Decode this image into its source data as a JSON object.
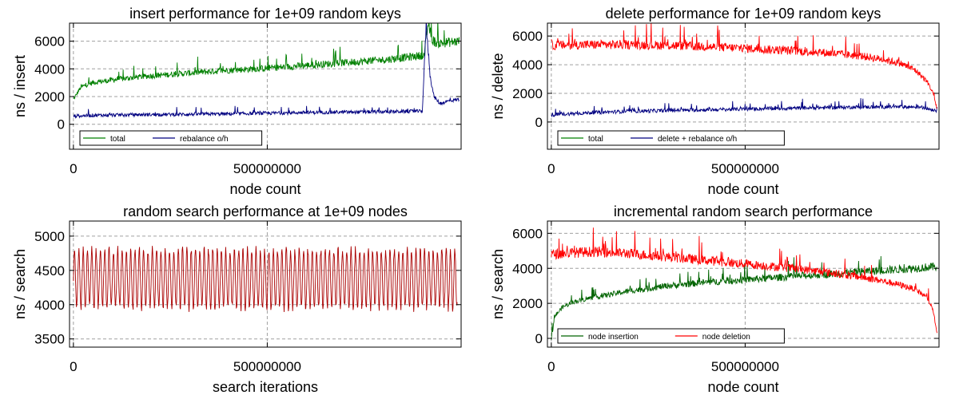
{
  "chart_data": [
    {
      "type": "line",
      "title": "insert performance for 1e+09 random keys",
      "xlabel": "node count",
      "ylabel": "ns / insert",
      "xlim": [
        -10000000,
        1000000000
      ],
      "ylim": [
        -1800,
        7300
      ],
      "xticks": [
        0,
        500000000
      ],
      "xtick_labels": [
        "0",
        "500000000"
      ],
      "yticks": [
        0,
        2000,
        4000,
        6000
      ],
      "ytick_labels": [
        "0",
        "2000",
        "4000",
        "6000"
      ],
      "grid": true,
      "legend": "bottom-left",
      "series": [
        {
          "name": "total",
          "color": "#008000",
          "x": [
            0,
            20000000,
            50000000,
            100000000,
            200000000,
            300000000,
            400000000,
            500000000,
            600000000,
            700000000,
            800000000,
            880000000,
            905000000,
            915000000,
            925000000,
            940000000,
            960000000,
            980000000,
            995000000
          ],
          "y": [
            1800,
            2700,
            3000,
            3200,
            3500,
            3700,
            3900,
            4050,
            4250,
            4450,
            4650,
            4900,
            5000,
            7300,
            6100,
            5800,
            5900,
            5950,
            6000
          ]
        },
        {
          "name": "rebalance o/h",
          "color": "#000080",
          "x": [
            0,
            50000000,
            200000000,
            400000000,
            600000000,
            800000000,
            900000000,
            910000000,
            920000000,
            930000000,
            945000000,
            970000000,
            995000000
          ],
          "y": [
            600,
            650,
            700,
            750,
            850,
            900,
            950,
            7300,
            3500,
            2000,
            1500,
            1700,
            1800
          ]
        }
      ]
    },
    {
      "type": "line",
      "title": "delete performance for 1e+09 random keys",
      "xlabel": "node count",
      "ylabel": "ns / delete",
      "xlim": [
        -10000000,
        1000000000
      ],
      "ylim": [
        -1900,
        6900
      ],
      "xticks": [
        0,
        500000000
      ],
      "xtick_labels": [
        "0",
        "500000000"
      ],
      "yticks": [
        0,
        2000,
        4000,
        6000
      ],
      "ytick_labels": [
        "0",
        "2000",
        "4000",
        "6000"
      ],
      "grid": true,
      "legend": "bottom-left",
      "series": [
        {
          "name": "total",
          "color": "#008000",
          "x": [],
          "y": []
        },
        {
          "name": "delete + rebalance o/h",
          "color": "#000080",
          "x": [
            0,
            100000000,
            200000000,
            300000000,
            400000000,
            500000000,
            600000000,
            700000000,
            800000000,
            900000000,
            950000000,
            995000000
          ],
          "y": [
            500,
            650,
            750,
            800,
            850,
            900,
            950,
            1000,
            1050,
            1050,
            1050,
            800
          ]
        },
        {
          "name": "",
          "color": "#ff0000",
          "x": [
            0,
            100000000,
            200000000,
            300000000,
            400000000,
            500000000,
            600000000,
            700000000,
            800000000,
            850000000,
            900000000,
            940000000,
            970000000,
            985000000,
            995000000
          ],
          "y": [
            5350,
            5400,
            5400,
            5350,
            5250,
            5150,
            5000,
            4850,
            4600,
            4400,
            4100,
            3600,
            2800,
            2000,
            900
          ]
        }
      ]
    },
    {
      "type": "line",
      "title": "random search performance at 1e+09 nodes",
      "xlabel": "search iterations",
      "ylabel": "ns / search",
      "xlim": [
        -10000000,
        1000000000
      ],
      "ylim": [
        3380,
        5220
      ],
      "xticks": [
        0,
        500000000
      ],
      "xtick_labels": [
        "0",
        "500000000"
      ],
      "yticks": [
        3500,
        4000,
        4500,
        5000
      ],
      "ytick_labels": [
        "3500",
        "4000",
        "4500",
        "5000"
      ],
      "grid": true,
      "series": [
        {
          "name": "",
          "color": "#aa0000",
          "x": [
            0,
            250000000,
            500000000,
            750000000,
            990000000
          ],
          "y": [
            4300,
            4300,
            4300,
            4300,
            4300
          ],
          "oscillation_low": 3950,
          "oscillation_high": 4800
        }
      ]
    },
    {
      "type": "line",
      "title": "incremental random search performance",
      "xlabel": "node count",
      "ylabel": "ns / search",
      "xlim": [
        -10000000,
        1000000000
      ],
      "ylim": [
        -500,
        6700
      ],
      "xticks": [
        0,
        500000000
      ],
      "xtick_labels": [
        "0",
        "500000000"
      ],
      "yticks": [
        0,
        2000,
        4000,
        6000
      ],
      "ytick_labels": [
        "0",
        "2000",
        "4000",
        "6000"
      ],
      "grid": true,
      "legend": "bottom-left",
      "series": [
        {
          "name": "node insertion",
          "color": "#006400",
          "x": [
            0,
            10000000,
            30000000,
            60000000,
            100000000,
            200000000,
            300000000,
            400000000,
            500000000,
            600000000,
            700000000,
            800000000,
            900000000,
            995000000
          ],
          "y": [
            0,
            1300,
            1800,
            2100,
            2300,
            2700,
            3000,
            3200,
            3350,
            3500,
            3650,
            3800,
            3950,
            4100
          ]
        },
        {
          "name": "node deletion",
          "color": "#ff0000",
          "x": [
            0,
            100000000,
            200000000,
            300000000,
            400000000,
            500000000,
            600000000,
            700000000,
            800000000,
            850000000,
            900000000,
            940000000,
            970000000,
            985000000,
            995000000
          ],
          "y": [
            4800,
            4950,
            4850,
            4650,
            4450,
            4250,
            4050,
            3800,
            3500,
            3300,
            3050,
            2800,
            2300,
            1600,
            200
          ]
        }
      ]
    }
  ]
}
